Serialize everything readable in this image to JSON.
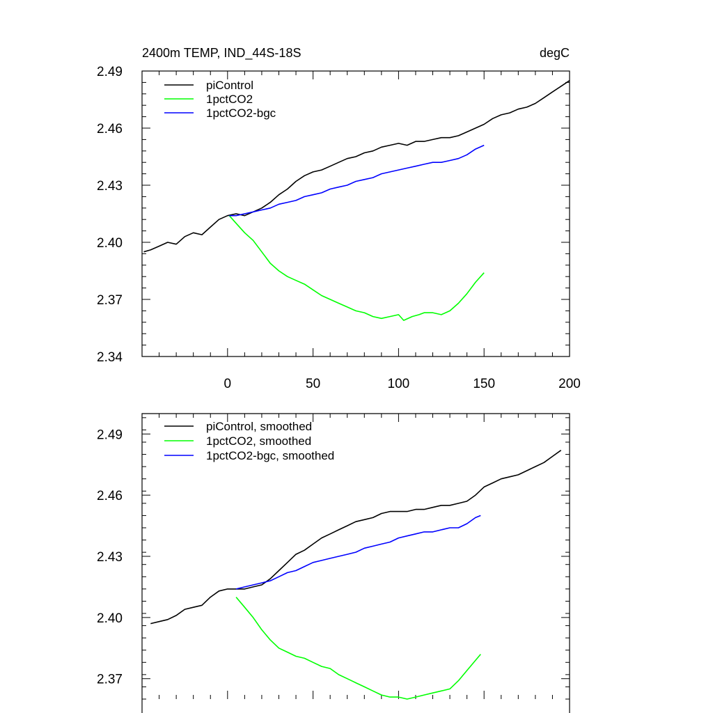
{
  "chart_data": [
    {
      "type": "line",
      "title": "2400m TEMP, IND_44S-18S",
      "units": "degC",
      "xlim": [
        -50,
        200
      ],
      "ylim": [
        2.34,
        2.49
      ],
      "xticks": [
        0,
        50,
        100,
        150,
        200
      ],
      "xtick_labels": [
        "0",
        "50",
        "100",
        "150",
        "200"
      ],
      "yticks": [
        2.34,
        2.37,
        2.4,
        2.43,
        2.46,
        2.49
      ],
      "ytick_labels": [
        "2.34",
        "2.37",
        "2.40",
        "2.43",
        "2.46",
        "2.49"
      ],
      "grid": false,
      "legend_position": "top-left",
      "series": [
        {
          "name": "piControl",
          "color": "#000000",
          "x": [
            -49,
            -45,
            -40,
            -35,
            -30,
            -25,
            -20,
            -15,
            -10,
            -5,
            0,
            5,
            10,
            15,
            20,
            25,
            30,
            35,
            40,
            45,
            50,
            55,
            60,
            65,
            70,
            75,
            80,
            85,
            90,
            95,
            100,
            105,
            110,
            115,
            120,
            125,
            130,
            135,
            140,
            145,
            150,
            155,
            160,
            165,
            170,
            175,
            180,
            185,
            190,
            195,
            200
          ],
          "values": [
            2.395,
            2.396,
            2.398,
            2.4,
            2.399,
            2.403,
            2.405,
            2.404,
            2.408,
            2.412,
            2.414,
            2.415,
            2.414,
            2.416,
            2.418,
            2.421,
            2.425,
            2.428,
            2.432,
            2.435,
            2.437,
            2.438,
            2.44,
            2.442,
            2.444,
            2.445,
            2.447,
            2.448,
            2.45,
            2.451,
            2.452,
            2.451,
            2.453,
            2.453,
            2.454,
            2.455,
            2.455,
            2.456,
            2.458,
            2.46,
            2.462,
            2.465,
            2.467,
            2.468,
            2.47,
            2.471,
            2.473,
            2.476,
            2.479,
            2.482,
            2.485
          ]
        },
        {
          "name": "1pctCO2",
          "color": "#00ff00",
          "x": [
            1,
            5,
            10,
            15,
            20,
            25,
            30,
            35,
            40,
            45,
            50,
            55,
            60,
            65,
            70,
            75,
            80,
            85,
            90,
            95,
            100,
            103,
            108,
            112,
            115,
            120,
            125,
            130,
            135,
            140,
            145,
            150
          ],
          "values": [
            2.414,
            2.41,
            2.405,
            2.401,
            2.395,
            2.389,
            2.385,
            2.382,
            2.38,
            2.378,
            2.375,
            2.372,
            2.37,
            2.368,
            2.366,
            2.364,
            2.363,
            2.361,
            2.36,
            2.361,
            2.362,
            2.359,
            2.361,
            2.362,
            2.363,
            2.363,
            2.362,
            2.364,
            2.368,
            2.373,
            2.379,
            2.384
          ]
        },
        {
          "name": "1pctCO2-bgc",
          "color": "#0000ff",
          "x": [
            1,
            5,
            10,
            15,
            20,
            25,
            30,
            35,
            40,
            45,
            50,
            55,
            60,
            65,
            70,
            75,
            80,
            85,
            90,
            95,
            100,
            105,
            110,
            115,
            120,
            125,
            130,
            135,
            140,
            145,
            150
          ],
          "values": [
            2.414,
            2.414,
            2.415,
            2.416,
            2.417,
            2.418,
            2.42,
            2.421,
            2.422,
            2.424,
            2.425,
            2.426,
            2.428,
            2.429,
            2.43,
            2.432,
            2.433,
            2.434,
            2.436,
            2.437,
            2.438,
            2.439,
            2.44,
            2.441,
            2.442,
            2.442,
            2.443,
            2.444,
            2.446,
            2.449,
            2.451
          ]
        }
      ]
    },
    {
      "type": "line",
      "title": "",
      "xlim": [
        -50,
        200
      ],
      "ylim": [
        2.36,
        2.5
      ],
      "yticks": [
        2.37,
        2.4,
        2.43,
        2.46,
        2.49
      ],
      "ytick_labels": [
        "2.37",
        "2.40",
        "2.43",
        "2.46",
        "2.49"
      ],
      "xticks": [
        0,
        50,
        100,
        150,
        200
      ],
      "grid": false,
      "legend_position": "top-left",
      "series": [
        {
          "name": "piControl, smoothed",
          "color": "#000000",
          "x": [
            -45,
            -40,
            -35,
            -30,
            -25,
            -20,
            -15,
            -10,
            -5,
            0,
            5,
            10,
            15,
            20,
            25,
            30,
            35,
            40,
            45,
            50,
            55,
            60,
            65,
            70,
            75,
            80,
            85,
            90,
            95,
            100,
            105,
            110,
            115,
            120,
            125,
            130,
            135,
            140,
            145,
            150,
            155,
            160,
            165,
            170,
            175,
            180,
            185,
            190,
            195
          ],
          "values": [
            2.397,
            2.398,
            2.399,
            2.401,
            2.404,
            2.405,
            2.406,
            2.41,
            2.413,
            2.414,
            2.414,
            2.414,
            2.415,
            2.416,
            2.419,
            2.423,
            2.427,
            2.431,
            2.433,
            2.436,
            2.439,
            2.441,
            2.443,
            2.445,
            2.447,
            2.448,
            2.449,
            2.451,
            2.452,
            2.452,
            2.452,
            2.453,
            2.453,
            2.454,
            2.455,
            2.455,
            2.456,
            2.457,
            2.46,
            2.464,
            2.466,
            2.468,
            2.469,
            2.47,
            2.472,
            2.474,
            2.476,
            2.479,
            2.482
          ]
        },
        {
          "name": "1pctCO2, smoothed",
          "color": "#00ff00",
          "x": [
            5,
            10,
            15,
            20,
            25,
            30,
            35,
            40,
            45,
            50,
            55,
            60,
            65,
            70,
            75,
            80,
            85,
            90,
            95,
            100,
            105,
            110,
            115,
            120,
            125,
            130,
            135,
            140,
            145,
            148
          ],
          "values": [
            2.41,
            2.405,
            2.4,
            2.394,
            2.389,
            2.385,
            2.383,
            2.381,
            2.38,
            2.378,
            2.376,
            2.375,
            2.372,
            2.37,
            2.368,
            2.366,
            2.364,
            2.362,
            2.361,
            2.361,
            2.36,
            2.361,
            2.362,
            2.363,
            2.364,
            2.365,
            2.369,
            2.374,
            2.379,
            2.382
          ]
        },
        {
          "name": "1pctCO2-bgc, smoothed",
          "color": "#0000ff",
          "x": [
            5,
            10,
            15,
            20,
            25,
            30,
            35,
            40,
            45,
            50,
            55,
            60,
            65,
            70,
            75,
            80,
            85,
            90,
            95,
            100,
            105,
            110,
            115,
            120,
            125,
            130,
            135,
            140,
            145,
            148
          ],
          "values": [
            2.414,
            2.415,
            2.416,
            2.417,
            2.418,
            2.42,
            2.422,
            2.423,
            2.425,
            2.427,
            2.428,
            2.429,
            2.43,
            2.431,
            2.432,
            2.434,
            2.435,
            2.436,
            2.437,
            2.439,
            2.44,
            2.441,
            2.442,
            2.442,
            2.443,
            2.444,
            2.444,
            2.446,
            2.449,
            2.45
          ]
        }
      ]
    }
  ]
}
